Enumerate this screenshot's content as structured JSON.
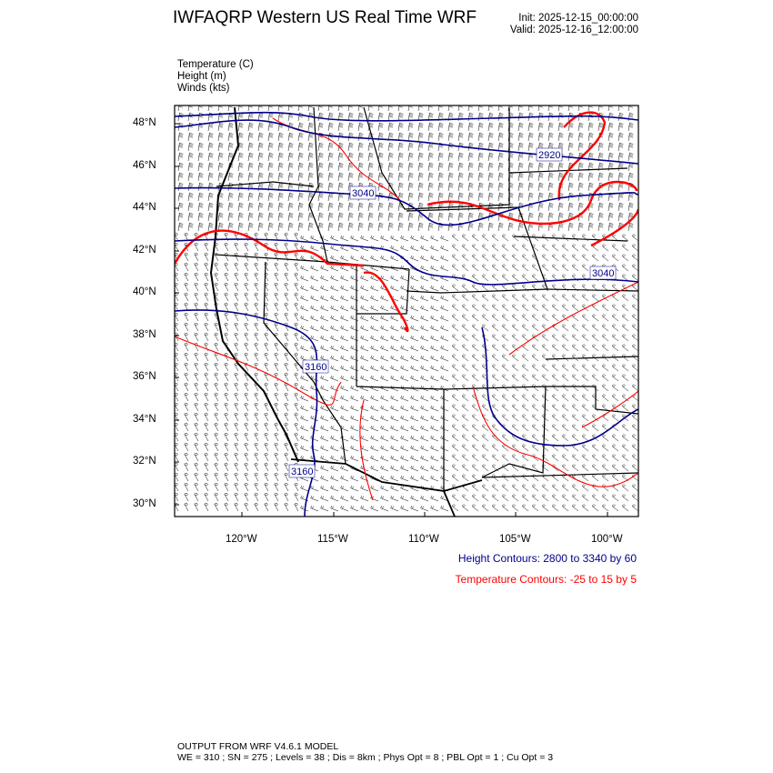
{
  "header": {
    "title": "IWFAQRP Western US Real Time WRF",
    "init": "Init: 2025-12-15_00:00:00",
    "valid": "Valid: 2025-12-16_12:00:00"
  },
  "fields": [
    "Temperature   (C)",
    "Height   (m)",
    "Winds   (kts)"
  ],
  "map": {
    "lat_labels": [
      "48°N",
      "46°N",
      "44°N",
      "42°N",
      "40°N",
      "38°N",
      "36°N",
      "34°N",
      "32°N",
      "30°N"
    ],
    "lon_labels": [
      "120°W",
      "115°W",
      "110°W",
      "105°W",
      "100°W"
    ],
    "height_contour_labels": [
      "3040",
      "2920",
      "3040",
      "3160",
      "3160"
    ],
    "colors": {
      "height": "#00008b",
      "temperature": "#ff0000",
      "boundaries": "#000000"
    }
  },
  "legend": {
    "height": "Height Contours: 2800 to 3340 by 60",
    "temperature": "Temperature Contours: -25 to 15 by 5"
  },
  "footer": {
    "line1": "OUTPUT FROM WRF V4.6.1 MODEL",
    "line2": "WE = 310 ; SN = 275 ; Levels = 38 ; Dis = 8km ; Phys Opt = 8 ; PBL Opt = 1 ; Cu Opt = 3"
  }
}
